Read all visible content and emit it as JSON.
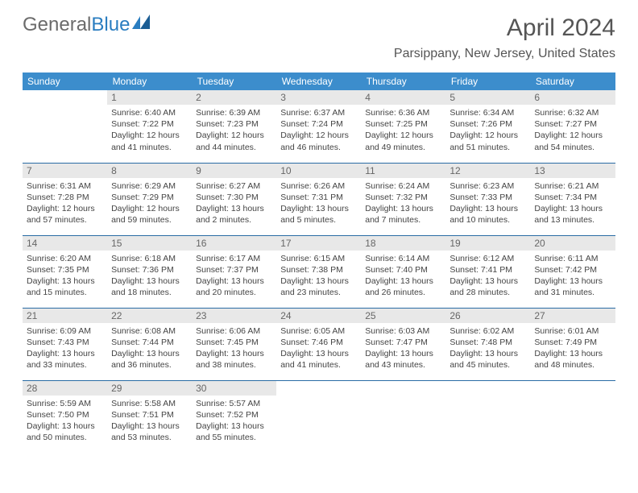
{
  "logo": {
    "text1": "General",
    "text2": "Blue"
  },
  "title": "April 2024",
  "location": "Parsippany, New Jersey, United States",
  "colors": {
    "header_bg": "#3c8dcc",
    "header_fg": "#ffffff",
    "daynum_bg": "#e8e8e8",
    "daynum_fg": "#666666",
    "row_divider": "#2a6ca5",
    "logo_gray": "#6b6b6b",
    "logo_blue": "#2a7dc0"
  },
  "day_labels": [
    "Sunday",
    "Monday",
    "Tuesday",
    "Wednesday",
    "Thursday",
    "Friday",
    "Saturday"
  ],
  "weeks": [
    [
      null,
      {
        "n": "1",
        "sr": "6:40 AM",
        "ss": "7:22 PM",
        "dl": "12 hours and 41 minutes."
      },
      {
        "n": "2",
        "sr": "6:39 AM",
        "ss": "7:23 PM",
        "dl": "12 hours and 44 minutes."
      },
      {
        "n": "3",
        "sr": "6:37 AM",
        "ss": "7:24 PM",
        "dl": "12 hours and 46 minutes."
      },
      {
        "n": "4",
        "sr": "6:36 AM",
        "ss": "7:25 PM",
        "dl": "12 hours and 49 minutes."
      },
      {
        "n": "5",
        "sr": "6:34 AM",
        "ss": "7:26 PM",
        "dl": "12 hours and 51 minutes."
      },
      {
        "n": "6",
        "sr": "6:32 AM",
        "ss": "7:27 PM",
        "dl": "12 hours and 54 minutes."
      }
    ],
    [
      {
        "n": "7",
        "sr": "6:31 AM",
        "ss": "7:28 PM",
        "dl": "12 hours and 57 minutes."
      },
      {
        "n": "8",
        "sr": "6:29 AM",
        "ss": "7:29 PM",
        "dl": "12 hours and 59 minutes."
      },
      {
        "n": "9",
        "sr": "6:27 AM",
        "ss": "7:30 PM",
        "dl": "13 hours and 2 minutes."
      },
      {
        "n": "10",
        "sr": "6:26 AM",
        "ss": "7:31 PM",
        "dl": "13 hours and 5 minutes."
      },
      {
        "n": "11",
        "sr": "6:24 AM",
        "ss": "7:32 PM",
        "dl": "13 hours and 7 minutes."
      },
      {
        "n": "12",
        "sr": "6:23 AM",
        "ss": "7:33 PM",
        "dl": "13 hours and 10 minutes."
      },
      {
        "n": "13",
        "sr": "6:21 AM",
        "ss": "7:34 PM",
        "dl": "13 hours and 13 minutes."
      }
    ],
    [
      {
        "n": "14",
        "sr": "6:20 AM",
        "ss": "7:35 PM",
        "dl": "13 hours and 15 minutes."
      },
      {
        "n": "15",
        "sr": "6:18 AM",
        "ss": "7:36 PM",
        "dl": "13 hours and 18 minutes."
      },
      {
        "n": "16",
        "sr": "6:17 AM",
        "ss": "7:37 PM",
        "dl": "13 hours and 20 minutes."
      },
      {
        "n": "17",
        "sr": "6:15 AM",
        "ss": "7:38 PM",
        "dl": "13 hours and 23 minutes."
      },
      {
        "n": "18",
        "sr": "6:14 AM",
        "ss": "7:40 PM",
        "dl": "13 hours and 26 minutes."
      },
      {
        "n": "19",
        "sr": "6:12 AM",
        "ss": "7:41 PM",
        "dl": "13 hours and 28 minutes."
      },
      {
        "n": "20",
        "sr": "6:11 AM",
        "ss": "7:42 PM",
        "dl": "13 hours and 31 minutes."
      }
    ],
    [
      {
        "n": "21",
        "sr": "6:09 AM",
        "ss": "7:43 PM",
        "dl": "13 hours and 33 minutes."
      },
      {
        "n": "22",
        "sr": "6:08 AM",
        "ss": "7:44 PM",
        "dl": "13 hours and 36 minutes."
      },
      {
        "n": "23",
        "sr": "6:06 AM",
        "ss": "7:45 PM",
        "dl": "13 hours and 38 minutes."
      },
      {
        "n": "24",
        "sr": "6:05 AM",
        "ss": "7:46 PM",
        "dl": "13 hours and 41 minutes."
      },
      {
        "n": "25",
        "sr": "6:03 AM",
        "ss": "7:47 PM",
        "dl": "13 hours and 43 minutes."
      },
      {
        "n": "26",
        "sr": "6:02 AM",
        "ss": "7:48 PM",
        "dl": "13 hours and 45 minutes."
      },
      {
        "n": "27",
        "sr": "6:01 AM",
        "ss": "7:49 PM",
        "dl": "13 hours and 48 minutes."
      }
    ],
    [
      {
        "n": "28",
        "sr": "5:59 AM",
        "ss": "7:50 PM",
        "dl": "13 hours and 50 minutes."
      },
      {
        "n": "29",
        "sr": "5:58 AM",
        "ss": "7:51 PM",
        "dl": "13 hours and 53 minutes."
      },
      {
        "n": "30",
        "sr": "5:57 AM",
        "ss": "7:52 PM",
        "dl": "13 hours and 55 minutes."
      },
      null,
      null,
      null,
      null
    ]
  ],
  "labels": {
    "sunrise": "Sunrise:",
    "sunset": "Sunset:",
    "daylight": "Daylight:"
  }
}
